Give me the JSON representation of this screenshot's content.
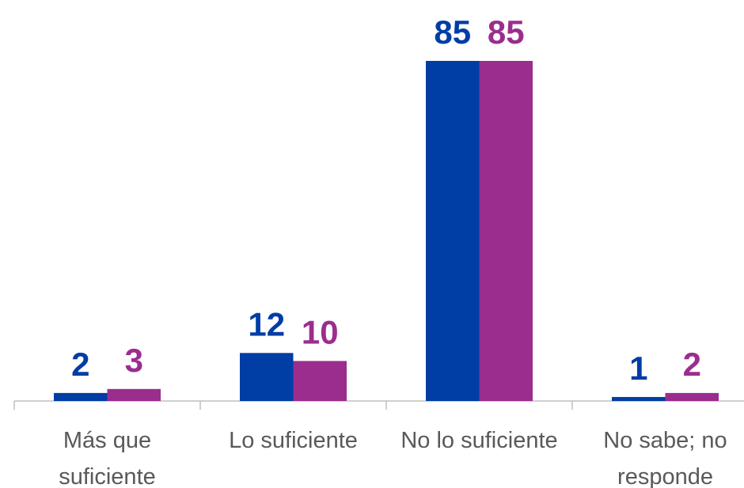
{
  "chart_data": {
    "type": "bar",
    "categories": [
      "Más que suficiente",
      "Lo suficiente",
      "No lo suficiente",
      "No sabe; no responde"
    ],
    "series": [
      {
        "color": "#003da5",
        "values": [
          2,
          12,
          85,
          1
        ]
      },
      {
        "color": "#9b2d8e",
        "values": [
          3,
          10,
          85,
          2
        ]
      }
    ]
  }
}
